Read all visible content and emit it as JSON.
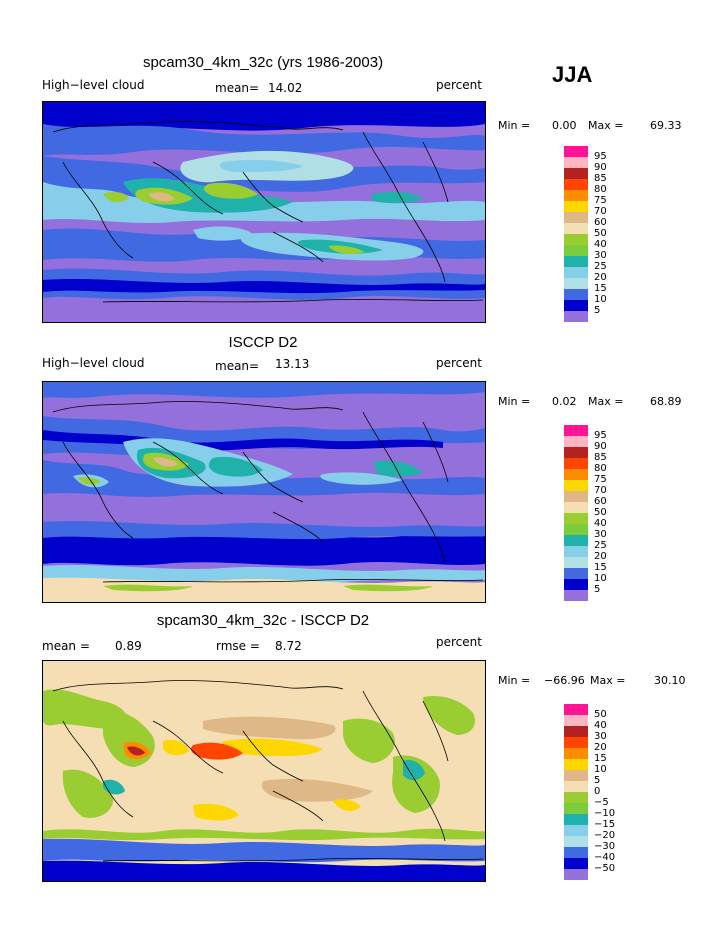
{
  "season": "JJA",
  "panels": [
    {
      "title": "spcam30_4km_32c (yrs 1986-2003)",
      "left_label": "High−level cloud",
      "mean_label": "mean=",
      "mean_value": "14.02",
      "unit": "percent",
      "min_label": "Min =",
      "min_value": "0.00",
      "max_label": "Max =",
      "max_value": "69.33",
      "levels": [
        "95",
        "90",
        "85",
        "80",
        "75",
        "70",
        "60",
        "50",
        "40",
        "30",
        "25",
        "20",
        "15",
        "10",
        "5"
      ]
    },
    {
      "title": "ISCCP D2",
      "left_label": "High−level cloud",
      "mean_label": "mean=",
      "mean_value": "13.13",
      "unit": "percent",
      "min_label": "Min =",
      "min_value": "0.02",
      "max_label": "Max =",
      "max_value": "68.89",
      "levels": [
        "95",
        "90",
        "85",
        "80",
        "75",
        "70",
        "60",
        "50",
        "40",
        "30",
        "25",
        "20",
        "15",
        "10",
        "5"
      ]
    },
    {
      "title": "spcam30_4km_32c - ISCCP D2",
      "mean_label": "mean =",
      "mean_value": "0.89",
      "rmse_label": "rmse =",
      "rmse_value": "8.72",
      "unit": "percent",
      "min_label": "Min =",
      "min_value": "−66.96",
      "max_label": "Max =",
      "max_value": "30.10",
      "levels": [
        "50",
        "40",
        "30",
        "20",
        "15",
        "10",
        "5",
        "0",
        "−5",
        "−10",
        "−15",
        "−20",
        "−30",
        "−40",
        "−50"
      ]
    }
  ],
  "colors": {
    "cloud_scale": [
      "#ff1493",
      "#ffb6c1",
      "#b22222",
      "#ff4500",
      "#ff8c00",
      "#ffd700",
      "#deb887",
      "#f5deb3",
      "#9acd32",
      "#7ccd3c",
      "#20b2aa",
      "#87ceeb",
      "#b0e0e6",
      "#4169e1",
      "#0000cd",
      "#9370db"
    ],
    "diff_scale": [
      "#ff1493",
      "#ffb6c1",
      "#b22222",
      "#ff4500",
      "#ff8c00",
      "#ffd700",
      "#deb887",
      "#d2b48c",
      "#f5deb3",
      "#9acd32",
      "#7ccd3c",
      "#20b2aa",
      "#87ceeb",
      "#4169e1",
      "#0000cd",
      "#9370db"
    ]
  }
}
